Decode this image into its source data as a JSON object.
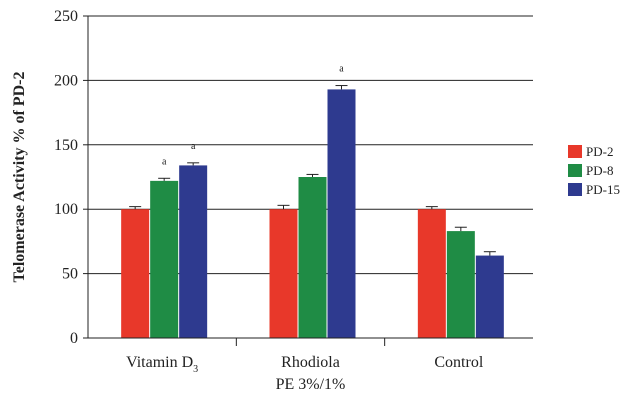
{
  "chart_data": {
    "type": "bar",
    "ylabel": "Telomerase Activity % of PD-2",
    "ylim": [
      0,
      250
    ],
    "yticks": [
      0,
      50,
      100,
      150,
      200,
      250
    ],
    "grid": true,
    "legend_position": "right",
    "categories": [
      {
        "main": "Vitamin D",
        "sub": "3",
        "line2": ""
      },
      {
        "main": "Rhodiola",
        "sub": "",
        "line2": "PE 3%/1%"
      },
      {
        "main": "Control",
        "sub": "",
        "line2": ""
      }
    ],
    "series": [
      {
        "name": "PD-2",
        "color": "#e8382a",
        "values": [
          100,
          100,
          100
        ],
        "errors": [
          2,
          3,
          2
        ],
        "annotations": [
          "",
          "",
          ""
        ]
      },
      {
        "name": "PD-8",
        "color": "#1f8c45",
        "values": [
          122,
          125,
          83
        ],
        "errors": [
          2,
          2,
          3
        ],
        "annotations": [
          "a",
          "",
          ""
        ]
      },
      {
        "name": "PD-15",
        "color": "#2e3a8f",
        "values": [
          134,
          193,
          64
        ],
        "errors": [
          2,
          3,
          3
        ],
        "annotations": [
          "a",
          "a",
          ""
        ]
      }
    ]
  }
}
